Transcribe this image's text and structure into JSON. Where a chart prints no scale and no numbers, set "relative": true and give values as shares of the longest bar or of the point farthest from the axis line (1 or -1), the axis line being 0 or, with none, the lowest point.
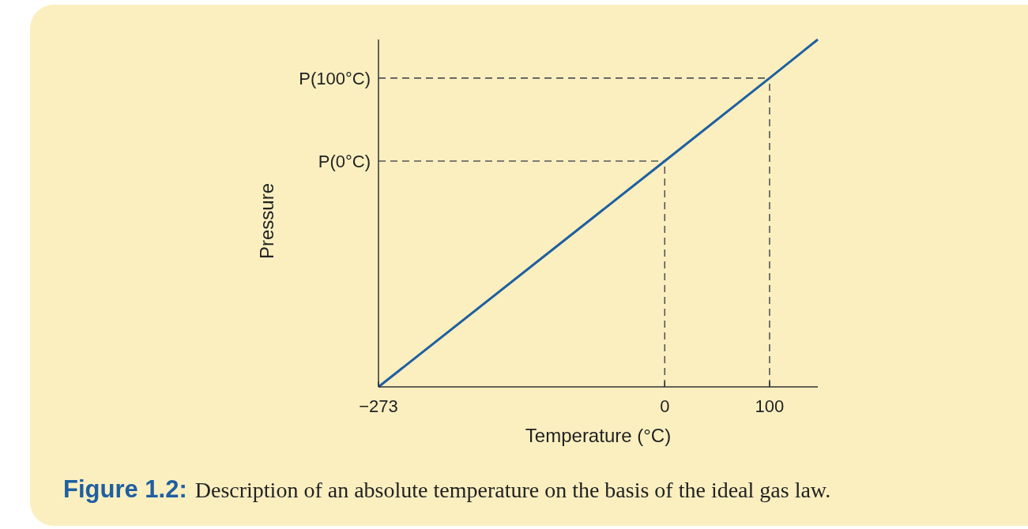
{
  "chart_data": {
    "type": "line",
    "relative": true,
    "xlabel": "Temperature (°C)",
    "ylabel": "Pressure",
    "x": [
      -273,
      0,
      100,
      146
    ],
    "xlim": [
      -273,
      146
    ],
    "xticks": [
      -273,
      0,
      100
    ],
    "series": [
      {
        "color": "#1f5fa0",
        "values": [
          0,
          0.65,
          0.889,
          1
        ]
      }
    ],
    "ref_lines": [
      {
        "axis": "y",
        "value": 0.65,
        "label": "P(0°C)",
        "line_style": "dashed",
        "color": "#555555"
      },
      {
        "axis": "y",
        "value": 0.889,
        "label": "P(100°C)",
        "line_style": "dashed",
        "color": "#555555"
      },
      {
        "axis": "x",
        "value": 0,
        "line_style": "dashed",
        "color": "#555555"
      },
      {
        "axis": "x",
        "value": 100,
        "line_style": "dashed",
        "color": "#555555"
      }
    ],
    "annotations": [
      "Figure 1.2:",
      "Description of an absolute temperature on the basis of the ideal gas law."
    ],
    "marker": "none",
    "line_style": "solid",
    "grid": false
  }
}
